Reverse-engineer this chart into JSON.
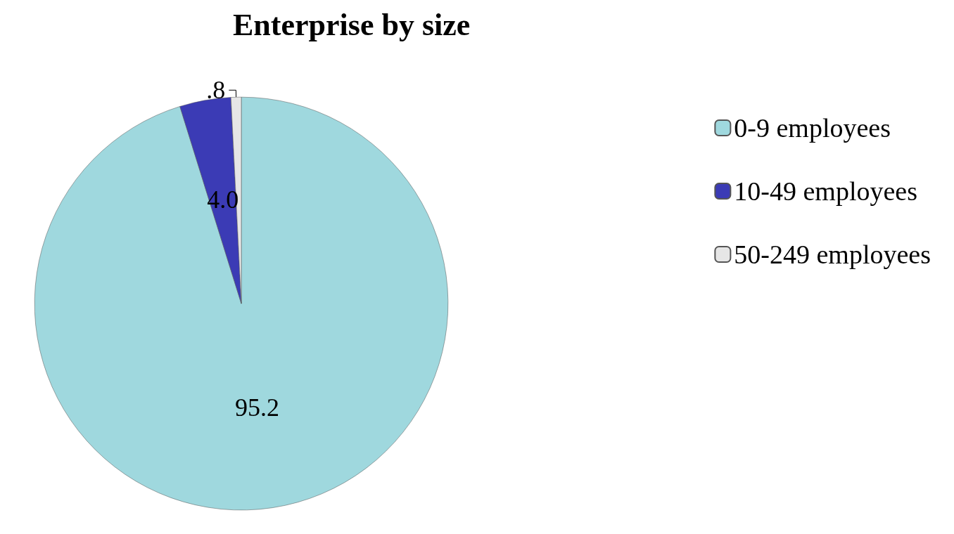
{
  "chart_data": {
    "type": "pie",
    "title": "Enterprise by size",
    "categories": [
      "0-9 employees",
      "10-49 employees",
      "50-249 employees"
    ],
    "values": [
      95.2,
      4.0,
      0.8
    ],
    "colors": [
      "#9fd8de",
      "#3b3bb5",
      "#e6e6e6"
    ],
    "value_labels": [
      "95.2",
      "4.0",
      ".8"
    ],
    "legend": "right"
  }
}
